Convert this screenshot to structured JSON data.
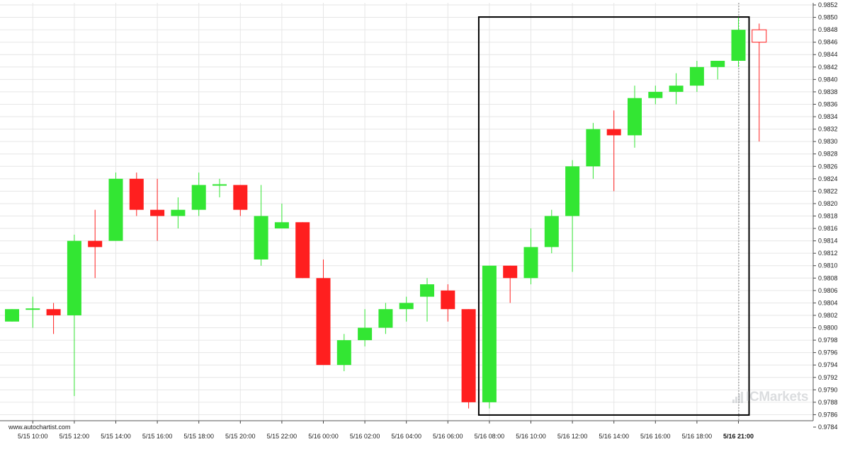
{
  "chart_data": {
    "type": "candlestick",
    "y_ticks": [
      "0.9784",
      "0.9786",
      "0.9788",
      "0.9790",
      "0.9792",
      "0.9794",
      "0.9796",
      "0.9798",
      "0.9800",
      "0.9802",
      "0.9804",
      "0.9806",
      "0.9808",
      "0.9810",
      "0.9812",
      "0.9814",
      "0.9816",
      "0.9818",
      "0.9820",
      "0.9822",
      "0.9824",
      "0.9826",
      "0.9828",
      "0.9830",
      "0.9832",
      "0.9834",
      "0.9836",
      "0.9838",
      "0.9840",
      "0.9842",
      "0.9844",
      "0.9846",
      "0.9848",
      "0.9850",
      "0.9852"
    ],
    "ylim": [
      0.9783,
      0.9853
    ],
    "x_ticks": [
      {
        "label": "5/15 10:00",
        "index": 1
      },
      {
        "label": "5/15 12:00",
        "index": 3
      },
      {
        "label": "5/15 14:00",
        "index": 5
      },
      {
        "label": "5/15 16:00",
        "index": 7
      },
      {
        "label": "5/15 18:00",
        "index": 9
      },
      {
        "label": "5/15 20:00",
        "index": 11
      },
      {
        "label": "5/15 22:00",
        "index": 13
      },
      {
        "label": "5/16 00:00",
        "index": 15
      },
      {
        "label": "5/16 02:00",
        "index": 17
      },
      {
        "label": "5/16 04:00",
        "index": 19
      },
      {
        "label": "5/16 06:00",
        "index": 21
      },
      {
        "label": "5/16 08:00",
        "index": 23
      },
      {
        "label": "5/16 10:00",
        "index": 25
      },
      {
        "label": "5/16 12:00",
        "index": 27
      },
      {
        "label": "5/16 14:00",
        "index": 29
      },
      {
        "label": "5/16 16:00",
        "index": 31
      },
      {
        "label": "5/16 18:00",
        "index": 33
      },
      {
        "label": "5/16 21:00",
        "index": 35,
        "bold": true
      }
    ],
    "candles": [
      {
        "o": 0.9801,
        "h": 0.9803,
        "l": 0.9801,
        "c": 0.9803
      },
      {
        "o": 0.9803,
        "h": 0.9805,
        "l": 0.98,
        "c": 0.9803
      },
      {
        "o": 0.9803,
        "h": 0.9804,
        "l": 0.9799,
        "c": 0.9802
      },
      {
        "o": 0.9802,
        "h": 0.9815,
        "l": 0.9789,
        "c": 0.9814
      },
      {
        "o": 0.9814,
        "h": 0.9819,
        "l": 0.9808,
        "c": 0.9813
      },
      {
        "o": 0.9814,
        "h": 0.9825,
        "l": 0.9814,
        "c": 0.9824
      },
      {
        "o": 0.9824,
        "h": 0.9825,
        "l": 0.9818,
        "c": 0.9819
      },
      {
        "o": 0.9819,
        "h": 0.9824,
        "l": 0.9814,
        "c": 0.9818
      },
      {
        "o": 0.9818,
        "h": 0.9821,
        "l": 0.9816,
        "c": 0.9819
      },
      {
        "o": 0.9819,
        "h": 0.9825,
        "l": 0.9818,
        "c": 0.9823
      },
      {
        "o": 0.9823,
        "h": 0.9824,
        "l": 0.9821,
        "c": 0.9823
      },
      {
        "o": 0.9823,
        "h": 0.9823,
        "l": 0.9818,
        "c": 0.9819
      },
      {
        "o": 0.9811,
        "h": 0.9823,
        "l": 0.981,
        "c": 0.9818
      },
      {
        "o": 0.9816,
        "h": 0.982,
        "l": 0.9816,
        "c": 0.9817
      },
      {
        "o": 0.9817,
        "h": 0.9817,
        "l": 0.9808,
        "c": 0.9808
      },
      {
        "o": 0.9808,
        "h": 0.9811,
        "l": 0.9794,
        "c": 0.9794
      },
      {
        "o": 0.9794,
        "h": 0.9799,
        "l": 0.9793,
        "c": 0.9798
      },
      {
        "o": 0.9798,
        "h": 0.9803,
        "l": 0.9797,
        "c": 0.98
      },
      {
        "o": 0.98,
        "h": 0.9804,
        "l": 0.9799,
        "c": 0.9803
      },
      {
        "o": 0.9803,
        "h": 0.9805,
        "l": 0.9801,
        "c": 0.9804
      },
      {
        "o": 0.9805,
        "h": 0.9808,
        "l": 0.9801,
        "c": 0.9807
      },
      {
        "o": 0.9806,
        "h": 0.9807,
        "l": 0.9801,
        "c": 0.9803
      },
      {
        "o": 0.9803,
        "h": 0.9803,
        "l": 0.9787,
        "c": 0.9788
      },
      {
        "o": 0.9788,
        "h": 0.981,
        "l": 0.9787,
        "c": 0.981
      },
      {
        "o": 0.981,
        "h": 0.981,
        "l": 0.9804,
        "c": 0.9808
      },
      {
        "o": 0.9808,
        "h": 0.9816,
        "l": 0.9807,
        "c": 0.9813
      },
      {
        "o": 0.9813,
        "h": 0.9819,
        "l": 0.9812,
        "c": 0.9818
      },
      {
        "o": 0.9818,
        "h": 0.9827,
        "l": 0.9809,
        "c": 0.9826
      },
      {
        "o": 0.9826,
        "h": 0.9833,
        "l": 0.9824,
        "c": 0.9832
      },
      {
        "o": 0.9832,
        "h": 0.9835,
        "l": 0.9822,
        "c": 0.9831
      },
      {
        "o": 0.9831,
        "h": 0.9839,
        "l": 0.9829,
        "c": 0.9837
      },
      {
        "o": 0.9837,
        "h": 0.9839,
        "l": 0.9836,
        "c": 0.9838
      },
      {
        "o": 0.9838,
        "h": 0.9841,
        "l": 0.9836,
        "c": 0.9839
      },
      {
        "o": 0.9839,
        "h": 0.9843,
        "l": 0.9838,
        "c": 0.9842
      },
      {
        "o": 0.9842,
        "h": 0.9843,
        "l": 0.984,
        "c": 0.9843
      },
      {
        "o": 0.9843,
        "h": 0.985,
        "l": 0.9842,
        "c": 0.9848
      },
      {
        "o": 0.9848,
        "h": 0.9849,
        "l": 0.983,
        "c": 0.9846,
        "open_candle": true
      }
    ],
    "pattern_box": {
      "start_index": 23,
      "end_index": 35,
      "low": 0.9786,
      "high": 0.985
    },
    "current_marker_index": 35,
    "grid": true,
    "colors": {
      "up": "#33e633",
      "down": "#ff1f1f",
      "open_candle": "#ff1f1f",
      "grid": "#e6e6e6",
      "box": "#000000"
    }
  },
  "source_text": "www.autochartist.com",
  "brand_text": "ICMarkets"
}
